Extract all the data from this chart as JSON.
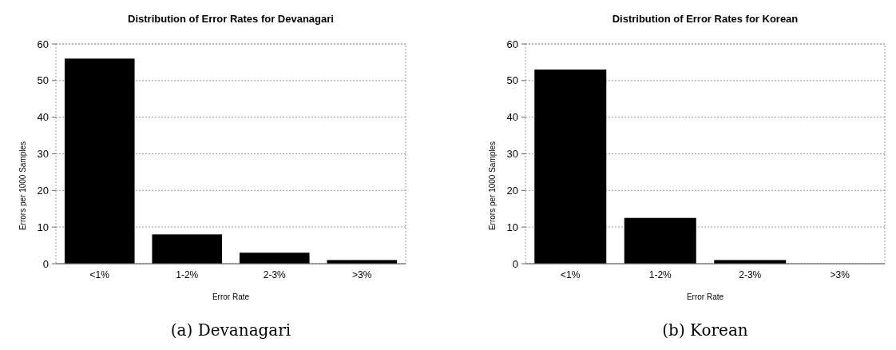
{
  "chart_data": [
    {
      "type": "bar",
      "title": "Distribution of Error Rates for Devanagari",
      "xlabel": "Error Rate",
      "ylabel": "Errors per 1000 Samples",
      "categories": [
        "<1%",
        "1-2%",
        "2-3%",
        ">3%"
      ],
      "values": [
        56,
        8,
        3,
        1
      ],
      "color": "#000000",
      "ylim": [
        0,
        60
      ],
      "yticks": [
        0,
        10,
        20,
        30,
        40,
        50,
        60
      ],
      "grid": "y",
      "annotations": [
        "(a) Devanagari"
      ]
    },
    {
      "type": "bar",
      "title": "Distribution of Error Rates for Korean",
      "xlabel": "Error Rate",
      "ylabel": "Errors per 1000 Samples",
      "categories": [
        "<1%",
        "1-2%",
        "2-3%",
        ">3%"
      ],
      "values": [
        53,
        12.5,
        1,
        0
      ],
      "color": "#000000",
      "ylim": [
        0,
        60
      ],
      "yticks": [
        0,
        10,
        20,
        30,
        40,
        50,
        60
      ],
      "grid": "y",
      "annotations": [
        "(b) Korean"
      ]
    }
  ]
}
